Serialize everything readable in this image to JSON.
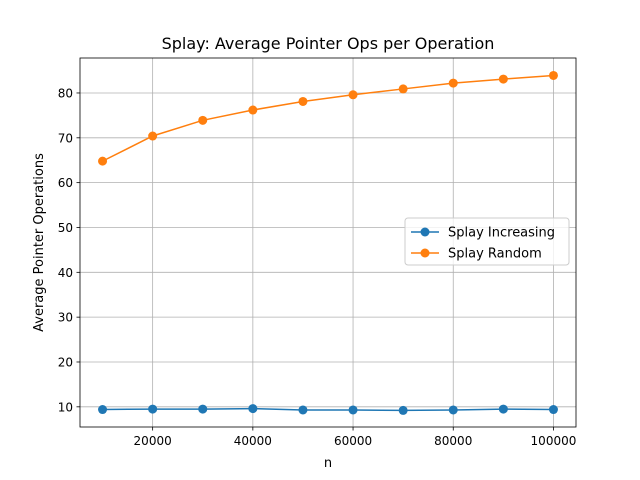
{
  "chart_data": {
    "type": "line",
    "title": "Splay: Average Pointer Ops per Operation",
    "xlabel": "n",
    "ylabel": "Average Pointer Operations",
    "x": [
      10000,
      20000,
      30000,
      40000,
      50000,
      60000,
      70000,
      80000,
      90000,
      100000
    ],
    "xlim": [
      5500,
      104500
    ],
    "ylim": [
      5.5,
      87.8
    ],
    "xticks": [
      20000,
      40000,
      60000,
      80000,
      100000
    ],
    "yticks": [
      10,
      20,
      30,
      40,
      50,
      60,
      70,
      80
    ],
    "grid": true,
    "legend_position": "center-right",
    "series": [
      {
        "name": "Splay Increasing",
        "color": "#1f77b4",
        "marker": "circle",
        "values": [
          9.4,
          9.5,
          9.5,
          9.6,
          9.3,
          9.3,
          9.2,
          9.3,
          9.5,
          9.4
        ]
      },
      {
        "name": "Splay Random",
        "color": "#ff7f0e",
        "marker": "circle",
        "values": [
          64.8,
          70.4,
          73.9,
          76.2,
          78.1,
          79.6,
          80.9,
          82.2,
          83.1,
          83.9
        ]
      }
    ]
  }
}
